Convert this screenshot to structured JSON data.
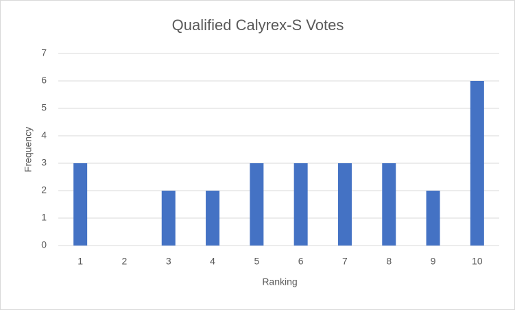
{
  "chart_data": {
    "type": "bar",
    "title": "Qualified Calyrex-S Votes",
    "x_label": "Ranking",
    "y_label": "Frequency",
    "categories": [
      "1",
      "2",
      "3",
      "4",
      "5",
      "6",
      "7",
      "8",
      "9",
      "10"
    ],
    "values": [
      3,
      0,
      2,
      2,
      3,
      3,
      3,
      3,
      2,
      6
    ],
    "color": "#4472c4",
    "ylim": [
      0,
      7
    ],
    "yticks": [
      0,
      1,
      2,
      3,
      4,
      5,
      6,
      7
    ],
    "grid": true
  }
}
